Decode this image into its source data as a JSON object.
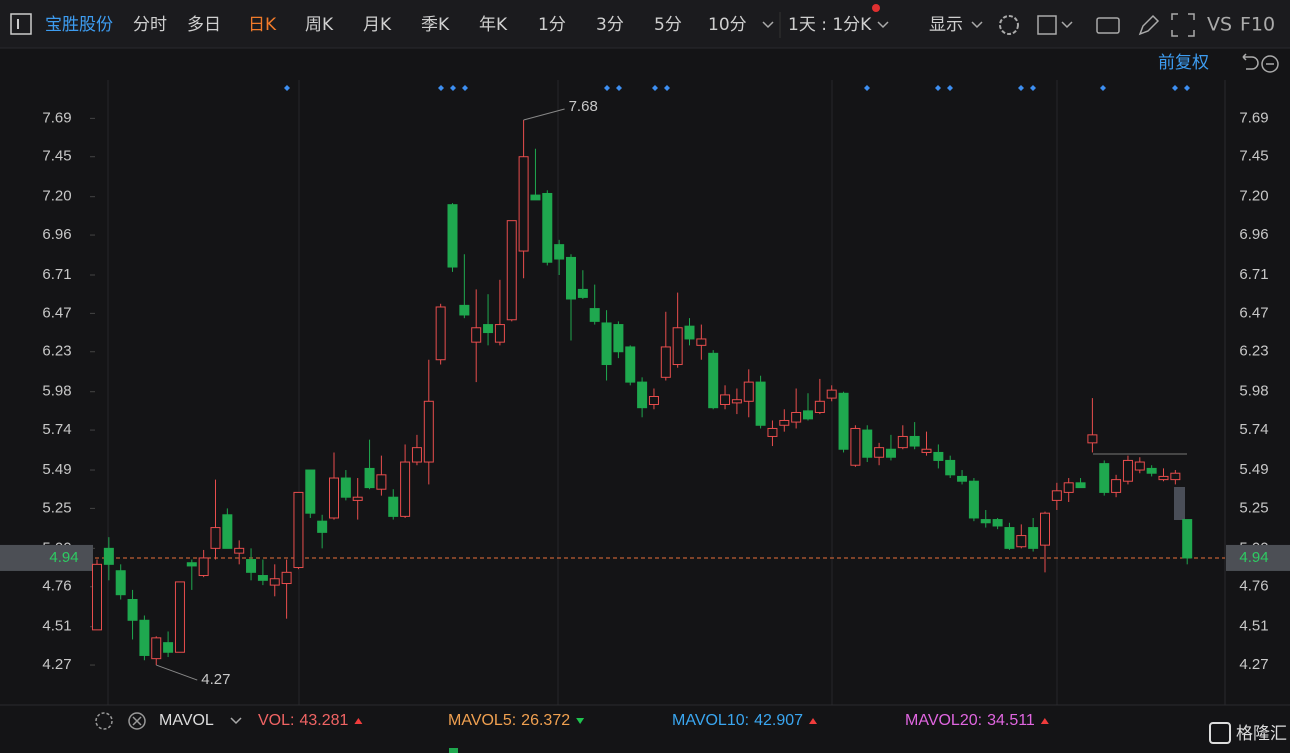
{
  "toolbar": {
    "stock": "宝胜股份",
    "periods": [
      "分时",
      "多日",
      "日K",
      "周K",
      "月K",
      "季K",
      "年K",
      "1分",
      "3分",
      "5分",
      "10分"
    ],
    "interval": "1天 : 1分K",
    "display": "显示",
    "vs": "VS",
    "f10": "F10",
    "adjust": "前复权"
  },
  "chart_data": {
    "type": "candlestick",
    "up_color": "#e84d4d",
    "down_color": "#1fa84f",
    "ylim": [
      4.02,
      7.93
    ],
    "yticks": [
      7.69,
      7.45,
      {
        "value": 7.2,
        "label": "7.20"
      },
      6.96,
      6.71,
      6.47,
      6.23,
      5.98,
      5.74,
      5.49,
      5.25,
      {
        "value": 5.0,
        "label": "5.00"
      },
      4.76,
      4.51,
      4.27
    ],
    "current_price": 4.94,
    "annotations": [
      {
        "value": 7.68,
        "label": "7.68"
      },
      {
        "value": 4.27,
        "label": "4.27"
      }
    ],
    "open": [
      4.49,
      5.0,
      4.86,
      4.68,
      4.55,
      4.31,
      4.41,
      4.35,
      4.91,
      4.83,
      5.0,
      5.21,
      4.97,
      4.93,
      4.83,
      4.77,
      4.78,
      4.88,
      5.49,
      5.17,
      5.19,
      5.44,
      5.3,
      5.5,
      5.37,
      5.32,
      5.2,
      5.54,
      5.54,
      6.18,
      7.15,
      6.52,
      6.29,
      6.4,
      6.29,
      6.43,
      6.86,
      7.21,
      7.22,
      6.9,
      6.82,
      6.62,
      6.5,
      6.41,
      6.4,
      6.26,
      6.04,
      5.9,
      6.07,
      6.15,
      6.39,
      6.27,
      6.22,
      5.9,
      5.91,
      5.92,
      6.04,
      5.7,
      5.77,
      5.79,
      5.86,
      5.85,
      5.94,
      5.97,
      5.52,
      5.74,
      5.57,
      5.62,
      5.63,
      5.7,
      5.6,
      5.6,
      5.55,
      5.45,
      5.42,
      5.18,
      5.18,
      5.13,
      5.01,
      5.13,
      5.02,
      5.3,
      5.35,
      5.41,
      5.66,
      5.53,
      5.35,
      5.42,
      5.49,
      5.5,
      5.43,
      5.43,
      5.18
    ],
    "high": [
      4.93,
      5.07,
      4.9,
      4.74,
      4.58,
      4.45,
      4.48,
      4.79,
      4.93,
      4.99,
      5.43,
      5.25,
      5.05,
      5.0,
      4.93,
      4.9,
      4.93,
      5.35,
      5.49,
      5.21,
      5.6,
      5.49,
      5.44,
      5.68,
      5.58,
      5.37,
      5.65,
      5.71,
      6.18,
      6.53,
      7.16,
      6.84,
      6.62,
      6.59,
      6.68,
      7.05,
      7.68,
      7.5,
      7.24,
      6.93,
      6.84,
      6.74,
      6.65,
      6.49,
      6.42,
      6.27,
      6.07,
      6.0,
      6.48,
      6.6,
      6.44,
      6.4,
      6.24,
      6.02,
      6.0,
      6.12,
      6.08,
      5.8,
      5.87,
      6.0,
      5.97,
      6.06,
      6.02,
      5.98,
      5.77,
      5.77,
      5.66,
      5.71,
      5.77,
      5.79,
      5.73,
      5.65,
      5.58,
      5.49,
      5.44,
      5.24,
      5.19,
      5.16,
      5.15,
      5.19,
      5.23,
      5.41,
      5.44,
      5.44,
      5.94,
      5.55,
      5.46,
      5.58,
      5.57,
      5.52,
      5.5,
      5.49,
      5.18
    ],
    "low": [
      4.49,
      4.8,
      4.68,
      4.43,
      4.3,
      4.27,
      4.32,
      4.35,
      4.74,
      4.82,
      4.93,
      5.0,
      4.9,
      4.8,
      4.77,
      4.7,
      4.56,
      4.87,
      5.19,
      5.0,
      5.18,
      5.3,
      5.18,
      5.37,
      5.33,
      5.18,
      5.19,
      5.52,
      5.4,
      6.15,
      6.73,
      6.44,
      6.04,
      6.27,
      6.27,
      6.42,
      6.69,
      7.18,
      6.77,
      6.71,
      6.3,
      6.56,
      6.4,
      6.05,
      6.19,
      6.02,
      5.82,
      5.87,
      6.05,
      6.13,
      6.27,
      6.18,
      5.87,
      5.87,
      5.84,
      5.82,
      5.75,
      5.64,
      5.73,
      5.75,
      5.8,
      5.84,
      5.92,
      5.6,
      5.51,
      5.54,
      5.52,
      5.55,
      5.62,
      5.62,
      5.58,
      5.5,
      5.44,
      5.4,
      5.17,
      5.13,
      5.12,
      4.99,
      5.0,
      4.98,
      4.85,
      5.24,
      5.29,
      5.38,
      5.6,
      5.33,
      5.32,
      5.4,
      5.47,
      5.45,
      5.42,
      5.4,
      4.9
    ],
    "close": [
      4.9,
      4.9,
      4.71,
      4.55,
      4.33,
      4.44,
      4.35,
      4.79,
      4.89,
      4.94,
      5.13,
      5.0,
      5.0,
      4.85,
      4.8,
      4.81,
      4.85,
      5.35,
      5.22,
      5.1,
      5.44,
      5.32,
      5.32,
      5.38,
      5.46,
      5.2,
      5.54,
      5.63,
      5.92,
      6.51,
      6.76,
      6.46,
      6.38,
      6.35,
      6.4,
      7.05,
      7.45,
      7.18,
      6.79,
      6.81,
      6.56,
      6.57,
      6.42,
      6.15,
      6.23,
      6.04,
      5.88,
      5.95,
      6.26,
      6.38,
      6.31,
      6.31,
      5.88,
      5.96,
      5.93,
      6.04,
      5.77,
      5.75,
      5.8,
      5.85,
      5.81,
      5.92,
      5.99,
      5.62,
      5.75,
      5.57,
      5.63,
      5.57,
      5.7,
      5.64,
      5.62,
      5.55,
      5.46,
      5.42,
      5.19,
      5.16,
      5.14,
      5.0,
      5.08,
      5.0,
      5.22,
      5.36,
      5.41,
      5.38,
      5.71,
      5.35,
      5.43,
      5.55,
      5.54,
      5.47,
      5.45,
      5.47,
      4.94
    ]
  },
  "indicators": {
    "name": "MAVOL",
    "items": [
      {
        "label": "VOL:",
        "value": "43.281",
        "color": "#f06464"
      },
      {
        "label": "MAVOL5:",
        "value": "26.372",
        "color": "#f0a050"
      },
      {
        "label": "MAVOL10:",
        "value": "42.907",
        "color": "#3aa6f0"
      },
      {
        "label": "MAVOL20:",
        "value": "34.511",
        "color": "#e066e0"
      }
    ]
  },
  "watermark": "格隆汇"
}
